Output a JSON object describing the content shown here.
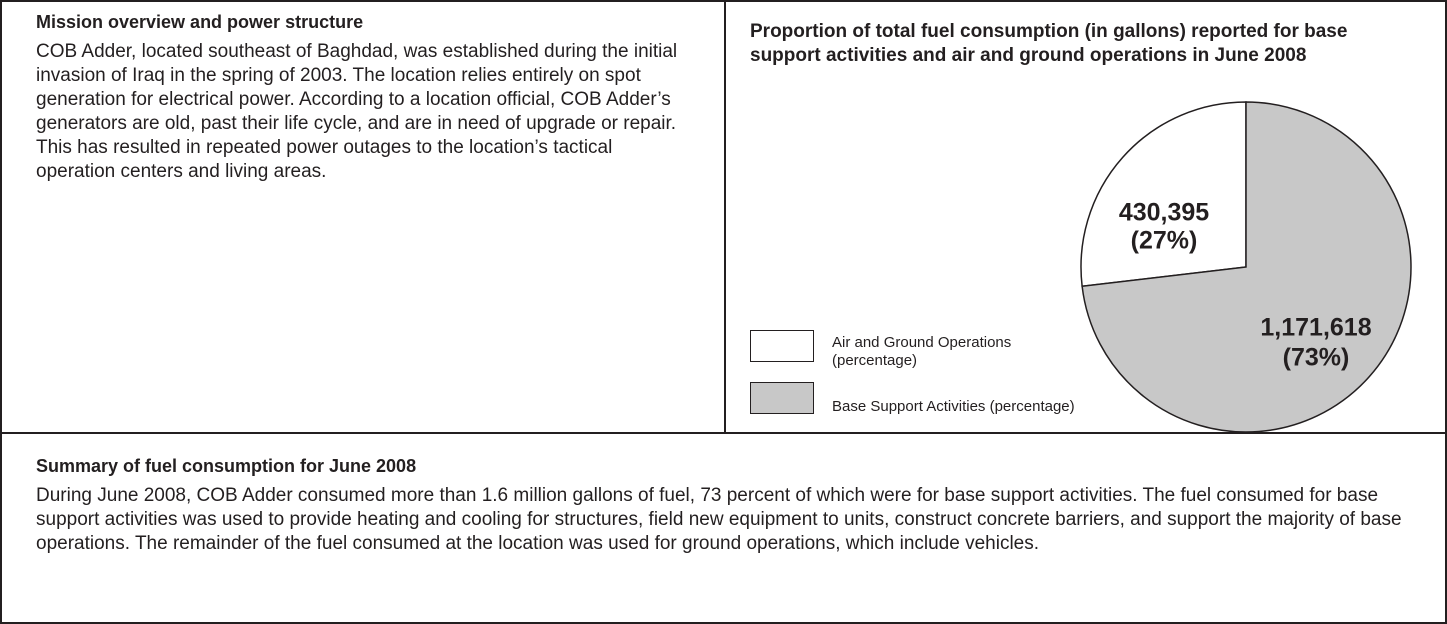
{
  "left_panel": {
    "heading": "Mission overview and power structure",
    "body": "COB Adder, located southeast of Baghdad, was established during the initial invasion of Iraq in the spring of 2003. The location relies entirely on spot generation for electrical power. According to a location official, COB Adder’s generators are old, past their life cycle, and are in need of upgrade or repair. This has resulted in repeated power outages to the location’s tactical operation centers and living areas."
  },
  "chart_data": {
    "type": "pie",
    "title": "Proportion of total fuel consumption (in gallons) reported for base support activities and air and ground operations in June 2008",
    "categories": [
      "Air and Ground Operations (percentage)",
      "Base Support Activities (percentage)"
    ],
    "values": [
      430395,
      1171618
    ],
    "value_labels": [
      "430,395",
      "1,171,618"
    ],
    "shares": [
      27,
      73
    ],
    "share_labels": [
      "(27%)",
      "(73%)"
    ],
    "colors": [
      "#ffffff",
      "#c8c8c8"
    ]
  },
  "bottom_panel": {
    "heading": "Summary of fuel consumption for June 2008",
    "body": "During June 2008, COB Adder consumed more than 1.6 million gallons of fuel, 73 percent of which were for base support activities. The fuel consumed for base support activities was used to provide heating and cooling for structures, field new equipment to units, construct concrete barriers, and support the majority of base operations. The remainder of the fuel consumed at the location was used for ground operations, which include vehicles."
  }
}
